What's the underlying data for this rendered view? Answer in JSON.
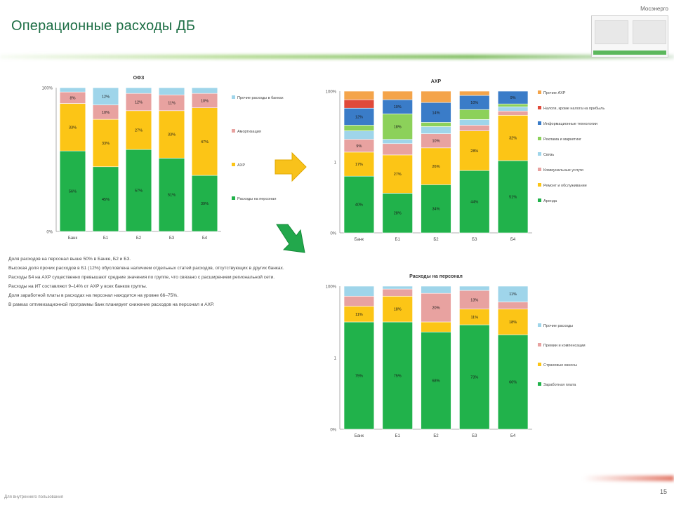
{
  "header": {
    "title": "Операционные расходы ДБ",
    "thumbnail_label": "Мосэнерго"
  },
  "colors": {
    "green": "#21b24b",
    "yellow": "#fcc516",
    "pink": "#e8a2a0",
    "lightblue": "#9fd5ea",
    "blue": "#3a7cc8",
    "lime": "#8cd15a",
    "red": "#e04a3a",
    "orange": "#f4a44a",
    "navy": "#3c5a9a",
    "arrow_yellow": "#f8c21b",
    "arrow_green": "#22a84c"
  },
  "chart_data": [
    {
      "type": "bar",
      "stacked": true,
      "title": "ОФЗ",
      "categories": [
        "Банк",
        "Б1",
        "Б2",
        "Б3",
        "Б4"
      ],
      "yticks": [
        "100%",
        "0%"
      ],
      "ylim": [
        0,
        100
      ],
      "series": [
        {
          "name": "Расходы на персонал",
          "color": "#21b24b",
          "values": [
            56,
            45,
            57,
            51,
            39
          ],
          "labels": [
            "56%",
            "45%",
            "57%",
            "51%",
            "39%"
          ]
        },
        {
          "name": "АХР",
          "color": "#fcc516",
          "values": [
            33,
            33,
            27,
            33,
            47
          ],
          "labels": [
            "33%",
            "33%",
            "27%",
            "33%",
            "47%"
          ]
        },
        {
          "name": "Амортизация",
          "color": "#e8a2a0",
          "values": [
            8,
            10,
            12,
            11,
            10
          ],
          "labels": [
            "8%",
            "10%",
            "12%",
            "11%",
            "10%"
          ]
        },
        {
          "name": "Прочие расходы в банках",
          "color": "#9fd5ea",
          "values": [
            3,
            12,
            4,
            5,
            4
          ],
          "labels": [
            "",
            "12%",
            "",
            "",
            ""
          ]
        }
      ],
      "legend_position": "right"
    },
    {
      "type": "bar",
      "stacked": true,
      "title": "АХР",
      "categories": [
        "Банк",
        "Б1",
        "Б2",
        "Б3",
        "Б4"
      ],
      "yticks": [
        "100%",
        "1",
        "0%"
      ],
      "ylim": [
        0,
        100
      ],
      "series": [
        {
          "name": "Аренда",
          "color": "#21b24b",
          "values": [
            40,
            28,
            34,
            44,
            51
          ],
          "labels": [
            "40%",
            "28%",
            "34%",
            "44%",
            "51%"
          ]
        },
        {
          "name": "Ремонт и обслуживание",
          "color": "#fcc516",
          "values": [
            17,
            27,
            26,
            28,
            32
          ],
          "labels": [
            "17%",
            "27%",
            "26%",
            "28%",
            "32%"
          ]
        },
        {
          "name": "Коммунальные услуги",
          "color": "#e8a2a0",
          "values": [
            9,
            8,
            10,
            4,
            3
          ],
          "labels": [
            "9%",
            "",
            "10%",
            "",
            ""
          ]
        },
        {
          "name": "Связь",
          "color": "#9fd5ea",
          "values": [
            6,
            3,
            5,
            4,
            3
          ],
          "labels": [
            "",
            "",
            "",
            "",
            ""
          ]
        },
        {
          "name": "Реклама и маркетинг",
          "color": "#8cd15a",
          "values": [
            4,
            18,
            3,
            7,
            2
          ],
          "labels": [
            "",
            "18%",
            "",
            "",
            ""
          ]
        },
        {
          "name": "Информационные технологии",
          "color": "#3a7cc8",
          "values": [
            12,
            10,
            14,
            10,
            9
          ],
          "labels": [
            "12%",
            "10%",
            "14%",
            "10%",
            "9%"
          ]
        },
        {
          "name": "Налоги, кроме налога на прибыль",
          "color": "#e04a3a",
          "values": [
            6,
            0,
            0,
            0,
            0
          ],
          "labels": [
            "",
            "",
            "",
            "",
            ""
          ]
        },
        {
          "name": "Прочие АХР",
          "color": "#f4a44a",
          "values": [
            6,
            6,
            8,
            3,
            0
          ],
          "labels": [
            "",
            "",
            "",
            "",
            ""
          ]
        }
      ],
      "legend_position": "right"
    },
    {
      "type": "bar",
      "stacked": true,
      "title": "Расходы на персонал",
      "categories": [
        "Банк",
        "Б1",
        "Б2",
        "Б3",
        "Б4"
      ],
      "yticks": [
        "100%",
        "1",
        "0%"
      ],
      "ylim": [
        0,
        100
      ],
      "series": [
        {
          "name": "Заработная плата",
          "color": "#21b24b",
          "values": [
            75,
            75,
            68,
            73,
            66
          ],
          "labels": [
            "75%",
            "75%",
            "68%",
            "73%",
            "66%"
          ]
        },
        {
          "name": "Страховые взносы",
          "color": "#fcc516",
          "values": [
            11,
            18,
            7,
            11,
            18
          ],
          "labels": [
            "11%",
            "18%",
            "",
            "11%",
            "18%"
          ]
        },
        {
          "name": "Премии и компенсации",
          "color": "#e8a2a0",
          "values": [
            7,
            5,
            20,
            13,
            5
          ],
          "labels": [
            "",
            "",
            "20%",
            "13%",
            ""
          ]
        },
        {
          "name": "Прочие расходы",
          "color": "#9fd5ea",
          "values": [
            7,
            2,
            5,
            3,
            11
          ],
          "labels": [
            "",
            "",
            "",
            "",
            "11%"
          ]
        }
      ],
      "legend_position": "right"
    }
  ],
  "commentary": [
    "Доля расходов на персонал выше 50% в Банке, Б2 и Б3.",
    "Высокая доля прочих расходов в Б1 (12%) обусловлена наличием отдельных статей расходов, отсутствующих в других банках.",
    "Расходы Б4 на АХР существенно превышают средние значения по группе, что связано с расширением региональной сети.",
    "Расходы на ИТ составляют 9–14% от АХР у всех банков группы.",
    "Доля заработной платы в расходах на персонал находится на уровне 66–75%.",
    "В рамках оптимизационной программы банк планирует снижение расходов на персонал и АХР."
  ],
  "footer": {
    "note": "Для внутреннего пользования",
    "page_number": "15"
  }
}
